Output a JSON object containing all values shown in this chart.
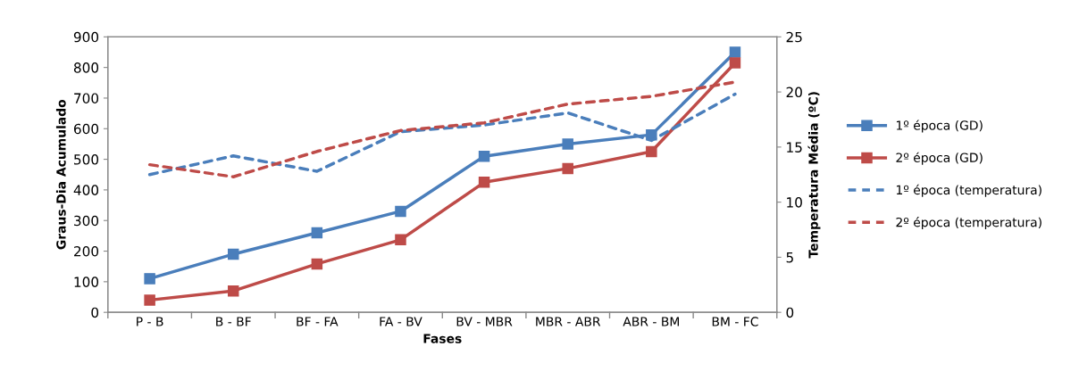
{
  "chart_data": {
    "type": "line",
    "xlabel": "Fases",
    "ylabel": "Graus-Dia Acumulado",
    "y2label": "Temperatura Média (ºC)",
    "categories": [
      "P - B",
      "B - BF",
      "BF - FA",
      "FA - BV",
      "BV - MBR",
      "MBR - ABR",
      "ABR - BM",
      "BM - FC"
    ],
    "series": [
      {
        "name": "1º época (GD)",
        "color": "#4a7ebb",
        "marker": "square",
        "line_style": "solid",
        "values": [
          110,
          190,
          260,
          330,
          510,
          550,
          580,
          850
        ]
      },
      {
        "name": "2º época (GD)",
        "color": "#be4b48",
        "marker": "square",
        "line_style": "solid",
        "values": [
          40,
          70,
          158,
          237,
          425,
          470,
          525,
          815
        ]
      },
      {
        "name": "1º época (temperatura)",
        "color": "#4a7ebb",
        "marker": "none",
        "line_style": "dashed",
        "axis": "y2",
        "values": [
          12.5,
          14.2,
          12.8,
          16.4,
          17.0,
          18.1,
          15.6,
          19.8
        ]
      },
      {
        "name": "2º época (temperatura)",
        "color": "#be4b48",
        "marker": "none",
        "line_style": "dashed",
        "axis": "y2",
        "values": [
          13.4,
          12.3,
          14.6,
          16.5,
          17.2,
          18.9,
          19.6,
          20.9
        ]
      }
    ],
    "ylim": [
      0,
      900
    ],
    "yticks": [
      0,
      100,
      200,
      300,
      400,
      500,
      600,
      700,
      800,
      900
    ],
    "y2lim": [
      0,
      25
    ],
    "y2ticks": [
      0,
      5,
      10,
      15,
      20,
      25
    ],
    "grid": false,
    "legend": "right"
  }
}
